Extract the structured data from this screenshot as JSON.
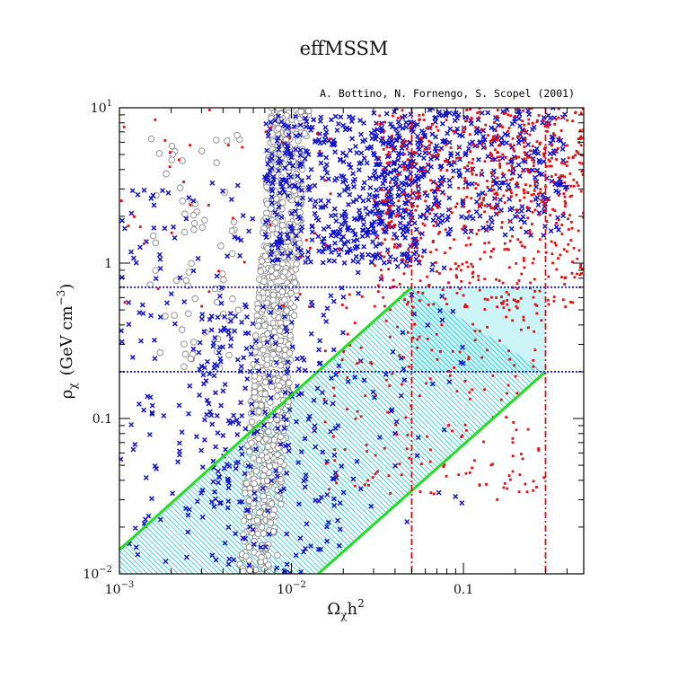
{
  "chart_data": {
    "type": "scatter",
    "title": "effMSSM",
    "subtitle": "A. Bottino, N. Fornengo, S. Scopel (2001)",
    "xlabel": "Ω",
    "xlabel_sub": "χ",
    "xlabel_tail": "h",
    "xlabel_sup": "2",
    "ylabel": "ρ",
    "ylabel_sub": "χ",
    "ylabel_unit": "(GeV cm",
    "ylabel_unit_sup": "−3",
    "ylabel_close": ")",
    "x_scale": "log",
    "y_scale": "log",
    "xlim": [
      0.001,
      0.5
    ],
    "ylim": [
      0.01,
      10
    ],
    "x_ticks": [
      {
        "value": 0.001,
        "base": "10",
        "exp": "−3"
      },
      {
        "value": 0.01,
        "base": "10",
        "exp": "−2"
      },
      {
        "value": 0.1,
        "base": "0.1",
        "exp": ""
      }
    ],
    "y_ticks": [
      {
        "value": 0.01,
        "base": "10",
        "exp": "−2"
      },
      {
        "value": 0.1,
        "base": "0.1",
        "exp": ""
      },
      {
        "value": 1,
        "base": "1",
        "exp": ""
      },
      {
        "value": 10,
        "base": "10",
        "exp": "1"
      }
    ],
    "grid": false,
    "reference_lines": {
      "horizontal_dotted_blue": [
        0.2,
        0.7
      ],
      "vertical_dashed_red": [
        0.05,
        0.3
      ]
    },
    "band": {
      "description_color": "#19c7d3",
      "upper_edge": [
        [
          0.001,
          0.0143
        ],
        [
          0.05,
          0.7
        ]
      ],
      "lower_edge": [
        [
          0.0143,
          0.01
        ],
        [
          0.3,
          0.2
        ]
      ],
      "edge_color": "#22dd22"
    },
    "series": [
      {
        "marker": "cross",
        "color": "#1414c8",
        "clusters": [
          {
            "x_range": [
              0.001,
              0.006
            ],
            "y_range": [
              0.012,
              3.5
            ],
            "count": 150
          },
          {
            "x_range": [
              0.003,
              0.02
            ],
            "y_range": [
              0.01,
              0.6
            ],
            "count": 230
          },
          {
            "x_range": [
              0.007,
              0.06
            ],
            "y_range": [
              1.0,
              9.0
            ],
            "count": 520
          },
          {
            "x_range": [
              0.03,
              0.4
            ],
            "y_range": [
              1.5,
              10.0
            ],
            "count": 420
          },
          {
            "x_range": [
              0.015,
              0.1
            ],
            "y_range": [
              0.02,
              1.0
            ],
            "count": 60
          }
        ]
      },
      {
        "marker": "dot",
        "color": "#e01010",
        "clusters": [
          {
            "x_range": [
              0.03,
              0.5
            ],
            "y_range": [
              0.5,
              10.0
            ],
            "count": 520
          },
          {
            "x_range": [
              0.015,
              0.3
            ],
            "y_range": [
              0.03,
              0.8
            ],
            "count": 200
          },
          {
            "x_range": [
              0.001,
              0.02
            ],
            "y_range": [
              0.5,
              10.0
            ],
            "count": 45
          },
          {
            "x_range": [
              0.1,
              0.5
            ],
            "y_range": [
              2.0,
              10.0
            ],
            "count": 160
          }
        ]
      },
      {
        "marker": "circle",
        "color": "#8a8a8a",
        "clusters": [
          {
            "x_range": [
              0.0045,
              0.012
            ],
            "y_range": [
              0.01,
              10.0
            ],
            "count": 800,
            "trend": "narrow-rising-band"
          },
          {
            "x_range": [
              0.0015,
              0.005
            ],
            "y_range": [
              0.2,
              7.0
            ],
            "count": 70
          }
        ]
      }
    ]
  }
}
